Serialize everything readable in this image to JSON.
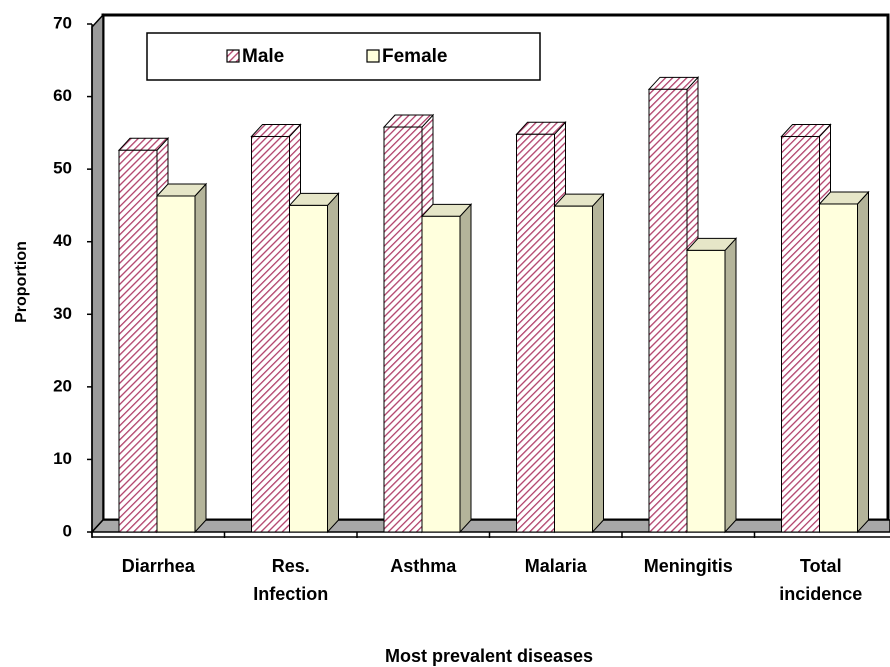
{
  "chart_data": {
    "type": "bar3d",
    "x_label": "Most prevalent diseases",
    "y_label": "Proportion",
    "categories": [
      "Diarrhea",
      "Res. Infection",
      "Asthma",
      "Malaria",
      "Meningitis",
      "Total incidence"
    ],
    "series": [
      {
        "name": "Male",
        "color": "#b0406a",
        "values": [
          52.6,
          54.5,
          55.8,
          54.8,
          61.0,
          54.5
        ]
      },
      {
        "name": "Female",
        "color": "#ffffdd",
        "values": [
          46.3,
          45.0,
          43.5,
          44.9,
          38.8,
          45.2
        ]
      }
    ],
    "ylim": [
      0,
      70
    ],
    "yticks": [
      0,
      10,
      20,
      30,
      40,
      50,
      60,
      70
    ],
    "grid": false
  }
}
